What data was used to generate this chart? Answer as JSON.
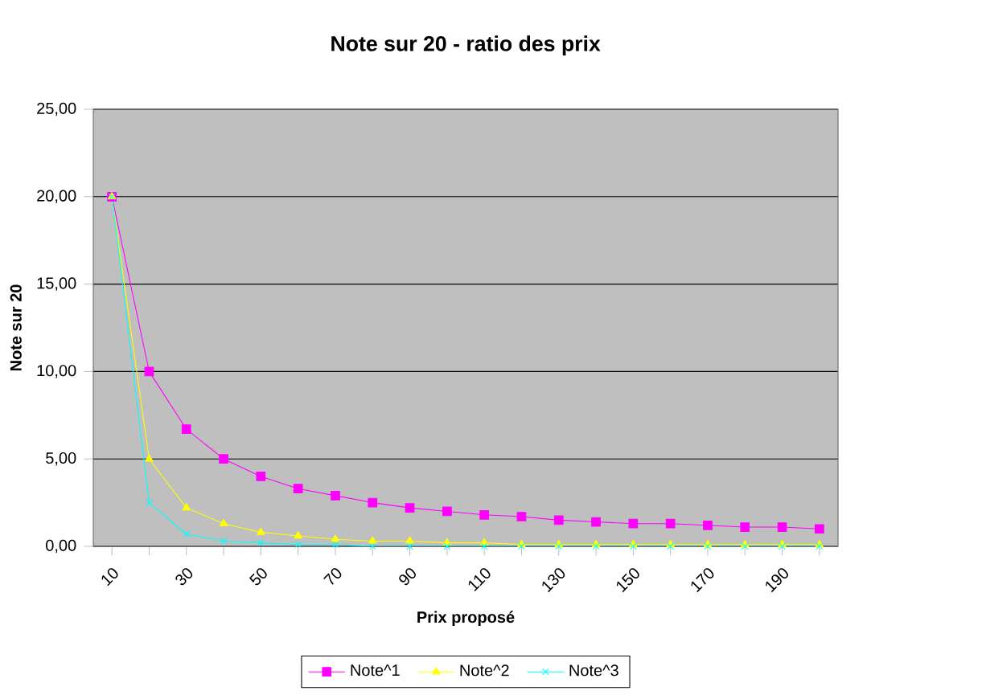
{
  "chart_data": {
    "type": "line",
    "title": "Note sur 20 - ratio des prix",
    "xlabel": "Prix proposé",
    "ylabel": "Note sur 20",
    "categories": [
      "10",
      null,
      "30",
      null,
      "50",
      null,
      "70",
      null,
      "90",
      null,
      "110",
      null,
      "130",
      null,
      "150",
      null,
      "170",
      null,
      "190",
      null
    ],
    "series": [
      {
        "name": "Note^1",
        "color": "#ff00ff",
        "marker": "square",
        "values": [
          20.0,
          10.0,
          6.7,
          5.0,
          4.0,
          3.3,
          2.9,
          2.5,
          2.2,
          2.0,
          1.8,
          1.7,
          1.5,
          1.4,
          1.3,
          1.3,
          1.2,
          1.1,
          1.1,
          1.0
        ]
      },
      {
        "name": "Note^2",
        "color": "#ffff00",
        "marker": "triangle",
        "values": [
          20.0,
          5.0,
          2.2,
          1.3,
          0.8,
          0.6,
          0.4,
          0.3,
          0.3,
          0.2,
          0.2,
          0.1,
          0.1,
          0.1,
          0.1,
          0.1,
          0.1,
          0.1,
          0.1,
          0.1
        ]
      },
      {
        "name": "Note^3",
        "color": "#00ffff",
        "marker": "cross",
        "values": [
          20.0,
          2.5,
          0.7,
          0.3,
          0.2,
          0.1,
          0.1,
          0.0,
          0.0,
          0.0,
          0.0,
          0.0,
          0.0,
          0.0,
          0.0,
          0.0,
          0.0,
          0.0,
          0.0,
          0.0
        ]
      }
    ],
    "ylim": [
      0,
      25
    ],
    "yticks": [
      {
        "value": 0,
        "label": "0,00"
      },
      {
        "value": 5,
        "label": "5,00"
      },
      {
        "value": 10,
        "label": "10,00"
      },
      {
        "value": 15,
        "label": "15,00"
      },
      {
        "value": 20,
        "label": "20,00"
      },
      {
        "value": 25,
        "label": "25,00"
      }
    ],
    "grid": "y",
    "legend": "bottom"
  }
}
